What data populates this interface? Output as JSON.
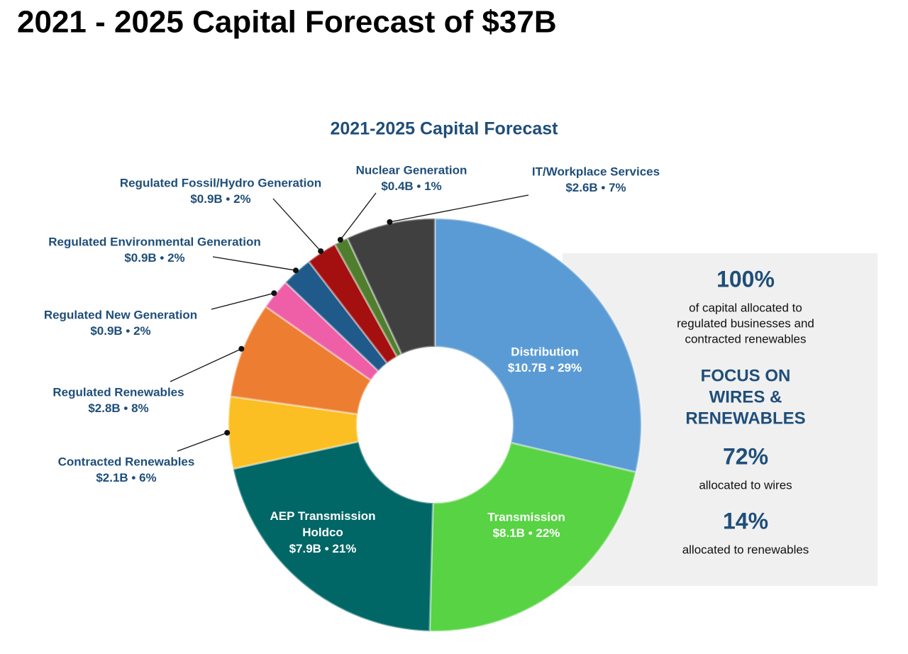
{
  "title": "2021 - 2025 Capital Forecast of $37B",
  "chart_data": {
    "type": "donut",
    "title": "2021-2025 Capital Forecast",
    "categories": [
      "Distribution",
      "Transmission",
      "AEP Transmission Holdco",
      "Contracted Renewables",
      "Regulated Renewables",
      "Regulated New Generation",
      "Regulated Environmental Generation",
      "Regulated Fossil/Hydro Generation",
      "Nuclear Generation",
      "IT/Workplace Services"
    ],
    "values": [
      10.7,
      8.1,
      7.9,
      2.1,
      2.8,
      0.9,
      0.9,
      0.9,
      0.4,
      2.6
    ],
    "value_labels": [
      "$10.7B",
      "$8.1B",
      "$7.9B",
      "$2.1B",
      "$2.8B",
      "$0.9B",
      "$0.9B",
      "$0.9B",
      "$0.4B",
      "$2.6B"
    ],
    "shares": [
      29,
      22,
      21,
      6,
      8,
      2,
      2,
      2,
      1,
      7
    ],
    "share_labels": [
      "29%",
      "22%",
      "21%",
      "6%",
      "8%",
      "2%",
      "2%",
      "2%",
      "1%",
      "7%"
    ],
    "colors": [
      "#5b9bd5",
      "#57d343",
      "#006666",
      "#fbbf24",
      "#ed7d31",
      "#ee5fa7",
      "#1f5a8a",
      "#a3100f",
      "#4f7f2e",
      "#404040"
    ]
  },
  "panel": [
    {
      "headline": "100%",
      "lines": [
        "of capital allocated to",
        "regulated businesses and",
        "contracted renewables"
      ]
    },
    {
      "headline_lines": [
        "FOCUS ON",
        "WIRES &",
        "RENEWABLES"
      ]
    },
    {
      "headline": "72%",
      "lines": [
        "allocated to wires"
      ]
    },
    {
      "headline": "14%",
      "lines": [
        "allocated to renewables"
      ]
    }
  ]
}
